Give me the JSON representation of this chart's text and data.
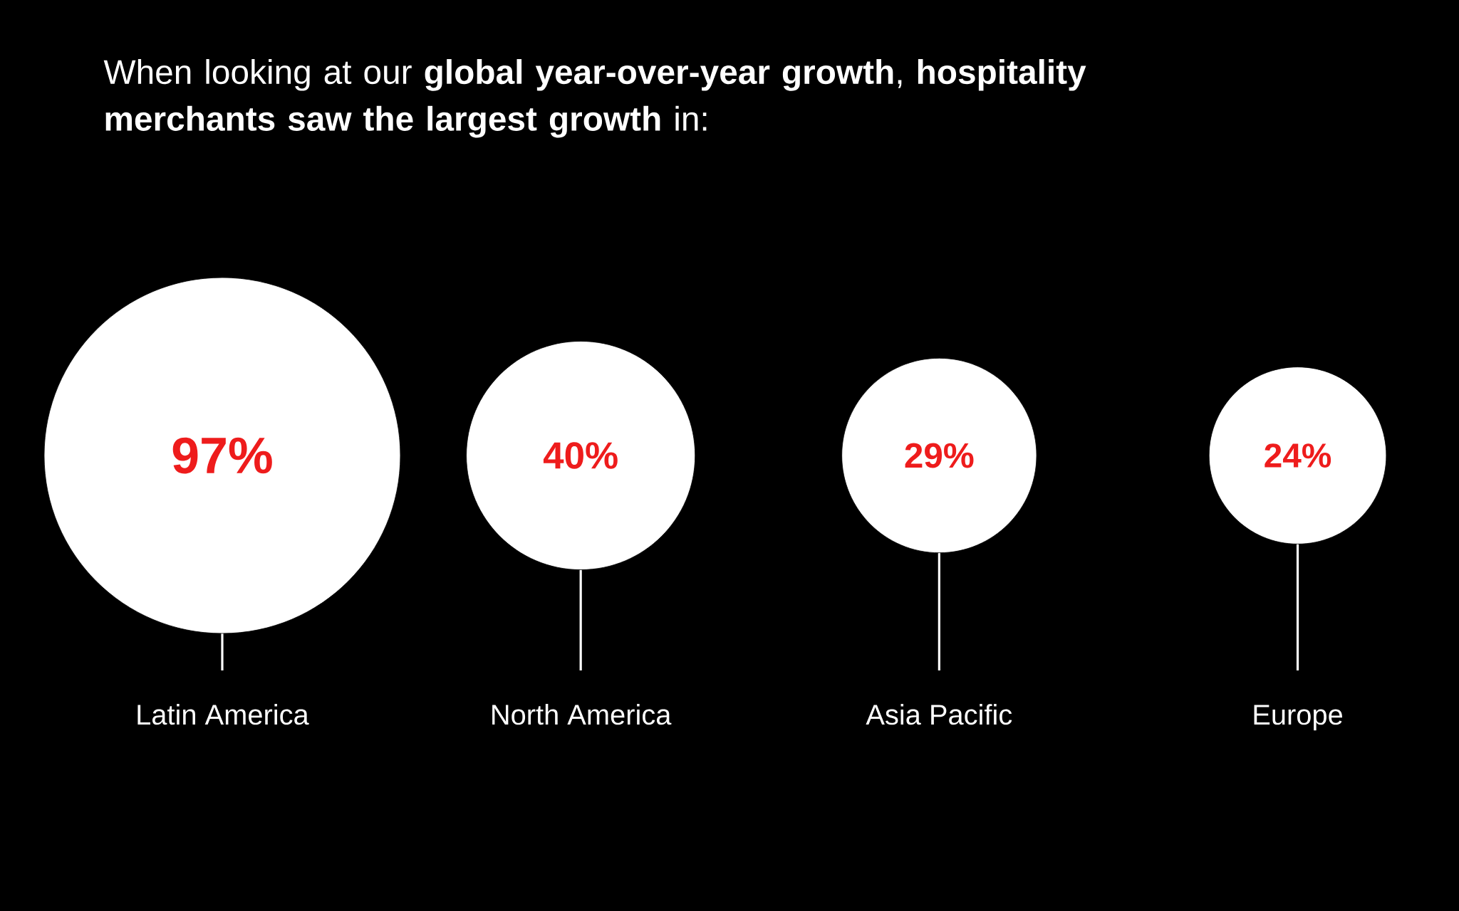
{
  "chart_data": {
    "type": "other",
    "title": "When looking at our **global year-over-year growth**, **hospitality merchants saw the largest growth** in:",
    "categories": [
      "Latin America",
      "North America",
      "Asia Pacific",
      "Europe"
    ],
    "values": [
      97,
      40,
      29,
      24
    ],
    "value_labels": [
      "97%",
      "40%",
      "29%",
      "24%"
    ],
    "color": "#ffffff"
  }
}
